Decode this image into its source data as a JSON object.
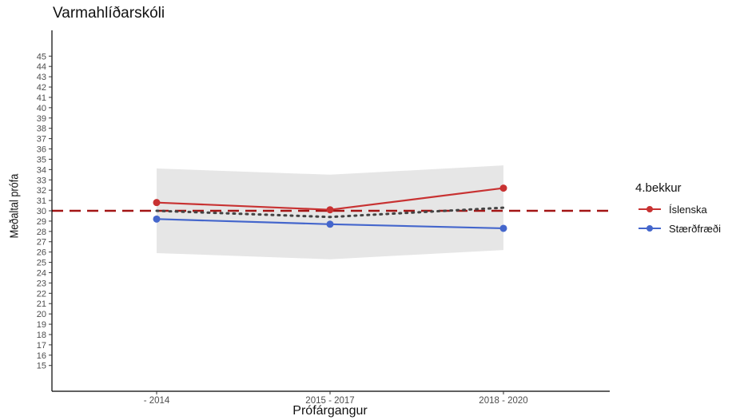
{
  "chart_data": {
    "type": "line",
    "title": "Varmahlíðarskóli",
    "xlabel": "Prófárgangur",
    "ylabel": "Meðaltal prófa",
    "categories": [
      "- 2014",
      "2015 - 2017",
      "2018 - 2020"
    ],
    "ylim": [
      12.5,
      47.5
    ],
    "yticks": [
      15,
      16,
      17,
      18,
      19,
      20,
      21,
      22,
      23,
      24,
      25,
      26,
      27,
      28,
      29,
      30,
      31,
      32,
      33,
      34,
      35,
      36,
      37,
      38,
      39,
      40,
      41,
      42,
      43,
      44,
      45
    ],
    "series": [
      {
        "name": "Íslenska",
        "values": [
          30.8,
          30.1,
          32.2
        ],
        "color": "#c83232"
      },
      {
        "name": "Stærðfræði",
        "values": [
          29.2,
          28.7,
          28.3
        ],
        "color": "#4466cc"
      }
    ],
    "national_average": {
      "values": [
        30.0,
        29.4,
        30.3
      ],
      "color": "#444444",
      "style": "dotted"
    },
    "confidence_band": {
      "upper": [
        34.1,
        33.5,
        34.4
      ],
      "lower": [
        25.9,
        25.3,
        26.2
      ],
      "color": "#e6e6e6"
    },
    "reference_line": {
      "y": 30,
      "color": "#a31515",
      "style": "dashed"
    },
    "legend": {
      "title": "4.bekkur",
      "placement": "right"
    },
    "grid": false
  }
}
